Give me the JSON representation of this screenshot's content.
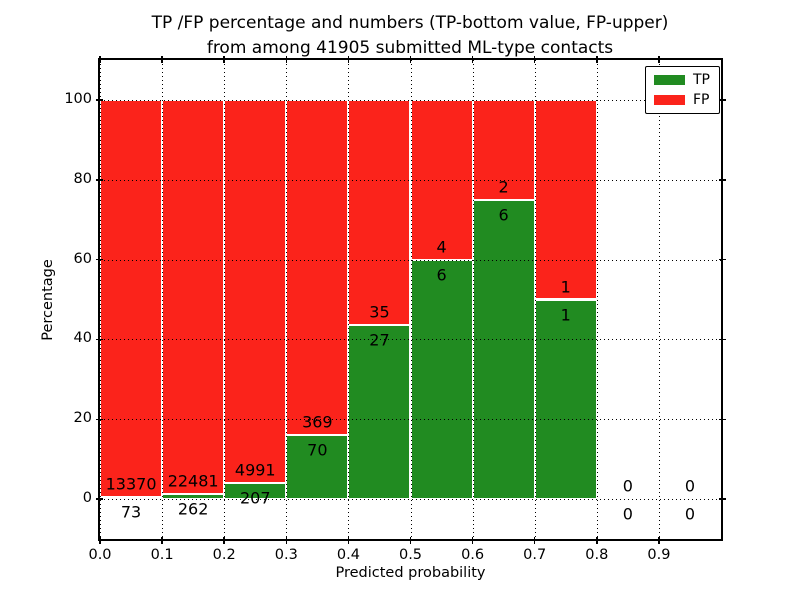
{
  "chart_data": {
    "type": "bar",
    "stacked": true,
    "title": "TP /FP percentage and numbers (TP-bottom value, FP-upper) from among 41905 submitted ML-type contacts",
    "title_line1": "TP /FP percentage and numbers (TP-bottom value, FP-upper)",
    "title_line2": "from among 41905 submitted ML-type contacts",
    "xlabel": "Predicted probability",
    "ylabel": "Percentage",
    "total_submitted": 41905,
    "xlim": [
      0.0,
      1.0
    ],
    "ylim": [
      -10,
      110
    ],
    "xticks": [
      "0.0",
      "0.1",
      "0.2",
      "0.3",
      "0.4",
      "0.5",
      "0.6",
      "0.7",
      "0.8",
      "0.9"
    ],
    "yticks": [
      "0",
      "20",
      "40",
      "60",
      "80",
      "100"
    ],
    "grid": true,
    "grid_style": "dotted",
    "legend_position": "upper right",
    "colors": {
      "tp": "#218b21",
      "fp": "#fb231b",
      "bar_edge": "#ffffff"
    },
    "legend": [
      {
        "label": "TP",
        "color": "#218b21"
      },
      {
        "label": "FP",
        "color": "#fb231b"
      }
    ],
    "bins": [
      {
        "x0": 0.0,
        "x1": 0.1,
        "tp": 73,
        "fp": 13370,
        "tp_pct": 0.54
      },
      {
        "x0": 0.1,
        "x1": 0.2,
        "tp": 262,
        "fp": 22481,
        "tp_pct": 1.15
      },
      {
        "x0": 0.2,
        "x1": 0.3,
        "tp": 207,
        "fp": 4991,
        "tp_pct": 3.98
      },
      {
        "x0": 0.3,
        "x1": 0.4,
        "tp": 70,
        "fp": 369,
        "tp_pct": 15.95
      },
      {
        "x0": 0.4,
        "x1": 0.5,
        "tp": 27,
        "fp": 35,
        "tp_pct": 43.55
      },
      {
        "x0": 0.5,
        "x1": 0.6,
        "tp": 6,
        "fp": 4,
        "tp_pct": 60.0
      },
      {
        "x0": 0.6,
        "x1": 0.7,
        "tp": 6,
        "fp": 2,
        "tp_pct": 75.0
      },
      {
        "x0": 0.7,
        "x1": 0.8,
        "tp": 1,
        "fp": 1,
        "tp_pct": 50.0
      },
      {
        "x0": 0.8,
        "x1": 0.9,
        "tp": 0,
        "fp": 0,
        "tp_pct": null
      },
      {
        "x0": 0.9,
        "x1": 1.0,
        "tp": 0,
        "fp": 0,
        "tp_pct": null
      }
    ]
  }
}
